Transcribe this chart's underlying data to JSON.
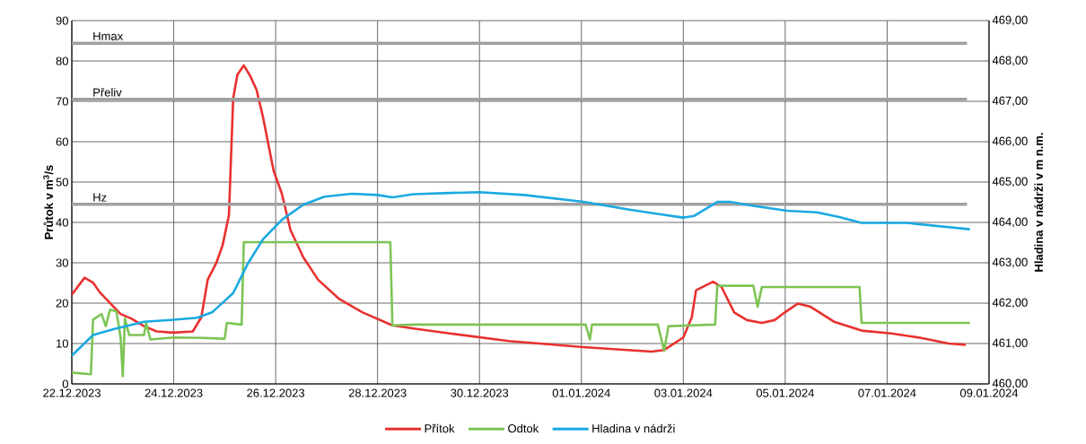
{
  "chart_data": {
    "type": "line",
    "ylabel": "Průtok v m$^{3}$/s",
    "y2label": "Hladina v nádrži v m n.m.",
    "xlim": [
      "2023-12-22",
      "2024-01-09"
    ],
    "xticks": [
      {
        "value": "2023-12-22",
        "label": "22.12.2023"
      },
      {
        "value": "2023-12-24",
        "label": "24.12.2023"
      },
      {
        "value": "2023-12-26",
        "label": "26.12.2023"
      },
      {
        "value": "2023-12-28",
        "label": "28.12.2023"
      },
      {
        "value": "2023-12-30",
        "label": "30.12.2023"
      },
      {
        "value": "2024-01-01",
        "label": "01.01.2024"
      },
      {
        "value": "2024-01-03",
        "label": "03.01.2024"
      },
      {
        "value": "2024-01-05",
        "label": "05.01.2024"
      },
      {
        "value": "2024-01-07",
        "label": "07.01.2024"
      },
      {
        "value": "2024-01-09",
        "label": "09.01.2024"
      }
    ],
    "ylim": [
      0,
      90
    ],
    "yticks": [
      0,
      10,
      20,
      30,
      40,
      50,
      60,
      70,
      80,
      90
    ],
    "y2lim": [
      460,
      469
    ],
    "y2ticks": [
      {
        "value": 460,
        "label": "460,00"
      },
      {
        "value": 461,
        "label": "461,00"
      },
      {
        "value": 462,
        "label": "462,00"
      },
      {
        "value": 463,
        "label": "463,00"
      },
      {
        "value": 464,
        "label": "464,00"
      },
      {
        "value": 465,
        "label": "465,00"
      },
      {
        "value": 466,
        "label": "466,00"
      },
      {
        "value": 467,
        "label": "467,00"
      },
      {
        "value": 468,
        "label": "468,00"
      },
      {
        "value": 469,
        "label": "469,00"
      }
    ],
    "grid": true,
    "legend": "bottom",
    "ref_lines": [
      {
        "axis": "y2",
        "value": 468.44,
        "label": "Hmax",
        "color": "#a0a0a0"
      },
      {
        "axis": "y2",
        "value": 467.05,
        "label": "Přeliv",
        "color": "#a0a0a0"
      },
      {
        "axis": "y2",
        "value": 464.45,
        "label": "Hz",
        "color": "#a0a0a0"
      }
    ],
    "series": [
      {
        "name": "Přítok",
        "color": "#e8312f",
        "x": [
          "2023-12-22T00:00",
          "2023-12-22T06:00",
          "2023-12-22T10:00",
          "2023-12-22T13:00",
          "2023-12-22T17:00",
          "2023-12-22T23:00",
          "2023-12-23T04:00",
          "2023-12-23T10:00",
          "2023-12-23T16:00",
          "2023-12-24T00:00",
          "2023-12-24T09:00",
          "2023-12-24T13:00",
          "2023-12-24T16:00",
          "2023-12-24T20:00",
          "2023-12-24T23:00",
          "2023-12-25T02:00",
          "2023-12-25T04:00",
          "2023-12-25T06:00",
          "2023-12-25T09:00",
          "2023-12-25T12:00",
          "2023-12-25T15:00",
          "2023-12-25T18:00",
          "2023-12-25T23:00",
          "2023-12-26T03:00",
          "2023-12-26T07:00",
          "2023-12-26T13:00",
          "2023-12-26T20:00",
          "2023-12-27T06:00",
          "2023-12-27T17:00",
          "2023-12-28T07:00",
          "2023-12-28T17:00",
          "2023-12-29T10:00",
          "2023-12-30T14:00",
          "2024-01-01T01:00",
          "2024-01-02T09:00",
          "2024-01-02T15:00",
          "2024-01-03T00:00",
          "2024-01-03T04:00",
          "2024-01-03T06:00",
          "2024-01-03T14:00",
          "2024-01-03T18:00",
          "2024-01-04T00:00",
          "2024-01-04T06:00",
          "2024-01-04T13:00",
          "2024-01-04T19:00",
          "2024-01-04T23:00",
          "2024-01-05T06:00",
          "2024-01-05T12:00",
          "2024-01-05T23:00",
          "2024-01-06T12:00",
          "2024-01-07T02:00",
          "2024-01-07T16:00",
          "2024-01-08T05:00",
          "2024-01-08T13:00"
        ],
        "values": [
          22.1,
          26.3,
          25.1,
          22.8,
          20.6,
          17.3,
          16.2,
          14.3,
          13.0,
          12.7,
          13.0,
          16.5,
          25.8,
          29.9,
          34.3,
          41.8,
          70.7,
          76.6,
          78.9,
          76.3,
          72.9,
          66.2,
          52.9,
          47.0,
          38.1,
          31.4,
          25.8,
          21.0,
          17.7,
          14.5,
          13.7,
          12.5,
          10.6,
          9.1,
          8.0,
          8.4,
          11.5,
          16.5,
          23.2,
          25.3,
          24.0,
          17.7,
          15.8,
          15.1,
          15.8,
          17.4,
          19.9,
          19.1,
          15.4,
          13.2,
          12.5,
          11.4,
          10.0,
          9.7
        ]
      },
      {
        "name": "Odtok",
        "color": "#7dc455",
        "x": [
          "2023-12-22T00:00",
          "2023-12-22T09:00",
          "2023-12-22T10:00",
          "2023-12-22T14:00",
          "2023-12-22T16:00",
          "2023-12-22T18:00",
          "2023-12-22T21:00",
          "2023-12-22T23:00",
          "2023-12-23T00:00",
          "2023-12-23T01:00",
          "2023-12-23T03:00",
          "2023-12-23T10:00",
          "2023-12-23T11:00",
          "2023-12-23T13:00",
          "2023-12-24T00:00",
          "2023-12-24T14:00",
          "2023-12-25T00:00",
          "2023-12-25T01:00",
          "2023-12-25T08:00",
          "2023-12-25T09:00",
          "2023-12-28T06:00",
          "2023-12-28T07:00",
          "2023-12-28T17:00",
          "2024-01-01T02:00",
          "2024-01-01T04:00",
          "2024-01-01T05:00",
          "2024-01-02T12:00",
          "2024-01-02T15:00",
          "2024-01-02T17:00",
          "2024-01-03T15:00",
          "2024-01-03T16:00",
          "2024-01-04T09:00",
          "2024-01-04T11:00",
          "2024-01-04T13:00",
          "2024-01-06T11:00",
          "2024-01-06T12:00",
          "2024-01-08T15:00"
        ],
        "values": [
          2.8,
          2.4,
          15.9,
          17.3,
          14.3,
          18.4,
          18.0,
          11.4,
          1.9,
          16.2,
          12.1,
          12.1,
          15.1,
          11.0,
          11.5,
          11.4,
          11.2,
          15.1,
          14.7,
          35.1,
          35.1,
          14.5,
          14.7,
          14.7,
          11.0,
          14.7,
          14.7,
          8.2,
          14.3,
          14.7,
          24.3,
          24.3,
          19.1,
          24.0,
          24.0,
          15.1,
          15.1
        ]
      },
      {
        "name": "Hladina v nádrži",
        "color": "#1aa9e1",
        "axis": "y2",
        "x": [
          "2023-12-22T00:00",
          "2023-12-22T10:00",
          "2023-12-22T20:00",
          "2023-12-23T10:00",
          "2023-12-24T00:00",
          "2023-12-24T11:00",
          "2023-12-24T18:00",
          "2023-12-25T04:00",
          "2023-12-25T11:00",
          "2023-12-25T18:00",
          "2023-12-26T03:00",
          "2023-12-26T13:00",
          "2023-12-26T23:00",
          "2023-12-27T12:00",
          "2023-12-28T00:00",
          "2023-12-28T07:00",
          "2023-12-28T17:00",
          "2023-12-29T10:00",
          "2023-12-30T00:00",
          "2023-12-30T21:00",
          "2024-01-01T01:00",
          "2024-01-01T22:00",
          "2024-01-02T12:00",
          "2024-01-03T00:00",
          "2024-01-03T05:00",
          "2024-01-03T16:00",
          "2024-01-03T22:00",
          "2024-01-04T09:00",
          "2024-01-05T01:00",
          "2024-01-05T15:00",
          "2024-01-06T01:00",
          "2024-01-06T12:00",
          "2024-01-07T09:00",
          "2024-01-08T15:00"
        ],
        "values": [
          460.7,
          461.21,
          461.36,
          461.54,
          461.59,
          461.64,
          461.77,
          462.25,
          462.99,
          463.58,
          464.07,
          464.44,
          464.64,
          464.71,
          464.68,
          464.62,
          464.7,
          464.73,
          464.75,
          464.68,
          464.51,
          464.32,
          464.21,
          464.12,
          464.16,
          464.51,
          464.51,
          464.41,
          464.29,
          464.25,
          464.14,
          463.99,
          463.99,
          463.83
        ]
      }
    ]
  }
}
